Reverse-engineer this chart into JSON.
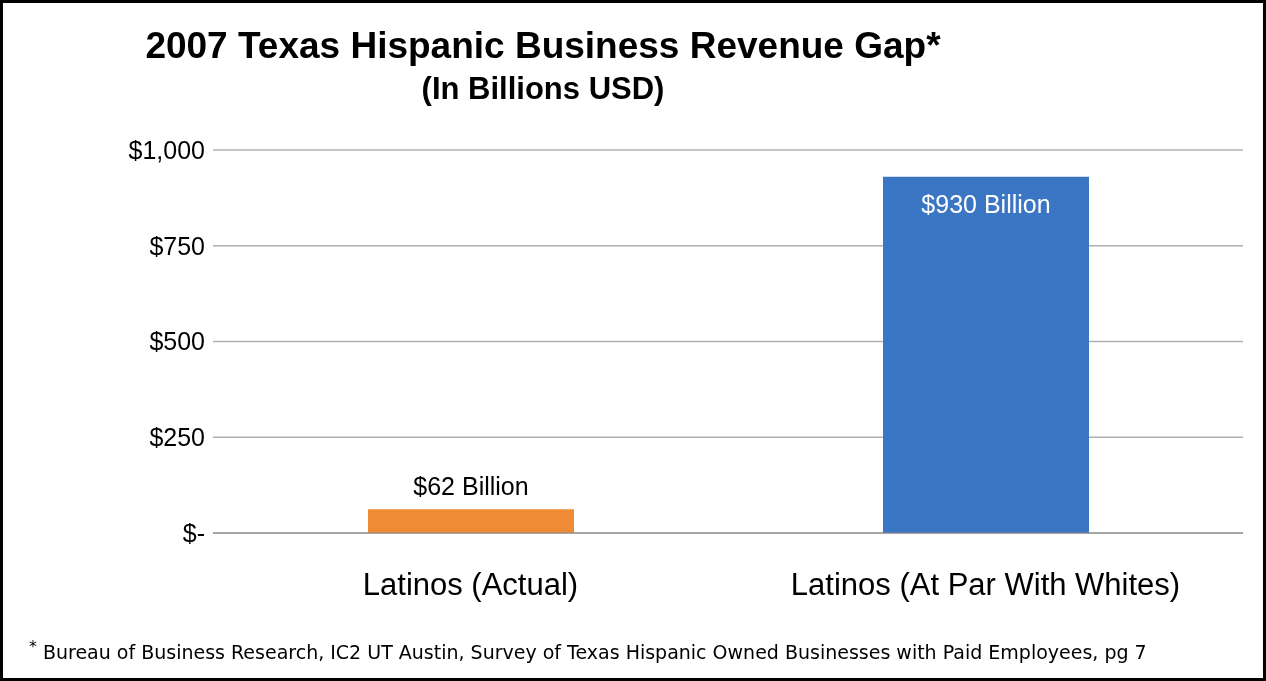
{
  "chart_data": {
    "type": "bar",
    "title": "2007 Texas Hispanic Business Revenue Gap*",
    "subtitle": "(In Billions USD)",
    "categories": [
      "Latinos (Actual)",
      "Latinos (At Par With Whites)"
    ],
    "values": [
      62,
      930
    ],
    "colors": [
      "#ef8a35",
      "#3b76c4"
    ],
    "value_labels": [
      "$62 Billion",
      "$930 Billion"
    ],
    "ylim": [
      0,
      1000
    ],
    "yticks": [
      {
        "value": 0,
        "label": "$-"
      },
      {
        "value": 250,
        "label": "$250"
      },
      {
        "value": 500,
        "label": "$500"
      },
      {
        "value": 750,
        "label": "$750"
      },
      {
        "value": 1000,
        "label": "$1,000"
      }
    ],
    "grid": "y",
    "legend": false,
    "annotations": [
      "$^{*}$ Bureau of Business Research, IC2 UT Austin, Survey of Texas Hispanic Owned Businesses with Paid Employees, pg 7"
    ]
  }
}
